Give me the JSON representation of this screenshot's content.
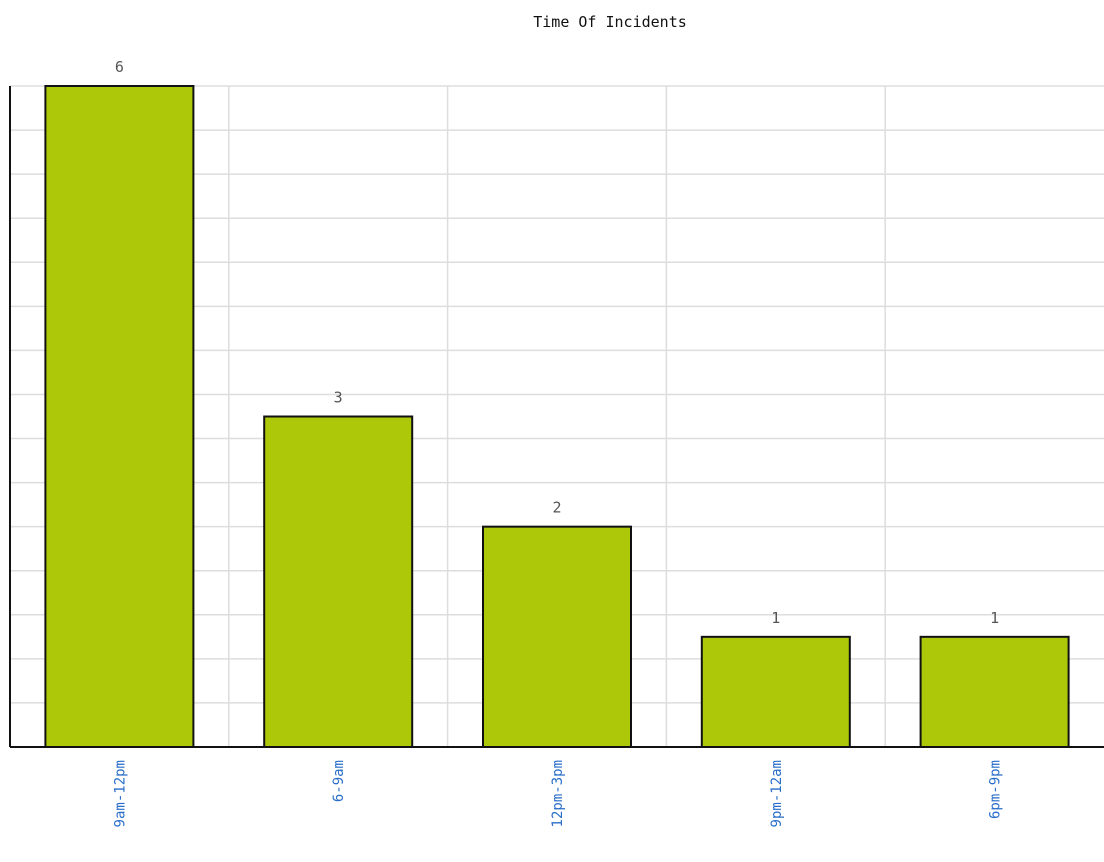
{
  "chart_data": {
    "type": "bar",
    "title": "Time Of Incidents",
    "categories": [
      "9am-12pm",
      "6-9am",
      "12pm-3pm",
      "9pm-12am",
      "6pm-9pm"
    ],
    "values": [
      6,
      3,
      2,
      1,
      1
    ],
    "xlabel": "",
    "ylabel": "",
    "ylim": [
      0,
      6
    ],
    "grid": true,
    "legend": "none",
    "colors": {
      "bar": "#adc808",
      "bar_border": "#111111",
      "grid": "#dddddd",
      "axis": "#111111",
      "tick_label": "#2a6ec9",
      "data_label": "#555555"
    }
  }
}
